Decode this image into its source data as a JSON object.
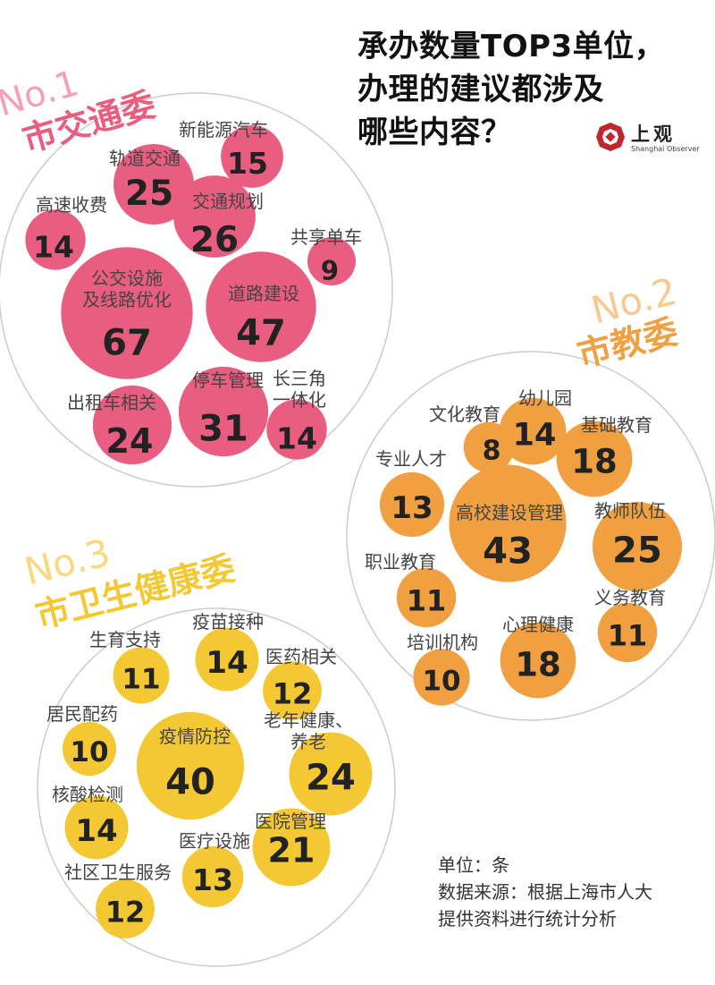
{
  "title": "承办数量TOP3单位，\n办理的建议都涉及\n哪些内容？",
  "logo": {
    "name": "上观",
    "subtitle": "Shanghai Observer",
    "color": "#c0272d"
  },
  "notes": {
    "unit": "单位：条",
    "source_line1": "数据来源：根据上海市人大",
    "source_line2": "提供资料进行统计分析"
  },
  "colors": {
    "pink": "#e95d80",
    "orange": "#f0a040",
    "yellow": "#f4c832",
    "outline": "#cccccc",
    "value_text": "#222222",
    "label_text": "#444444"
  },
  "chart_data": [
    {
      "type": "bubble",
      "rank": "No.1",
      "name": "市交通委",
      "color": "#e95d80",
      "categories": [
        "公交设施\n及线路优化",
        "道路建设",
        "停车管理",
        "交通规划",
        "轨道交通",
        "新能源汽车",
        "出租车相关",
        "长三角\n一体化",
        "高速收费",
        "共享单车"
      ],
      "values": [
        67,
        47,
        31,
        26,
        25,
        15,
        24,
        14,
        14,
        9
      ]
    },
    {
      "type": "bubble",
      "rank": "No.2",
      "name": "市教委",
      "color": "#f0a040",
      "categories": [
        "高校建设管理",
        "教师队伍",
        "基础教育",
        "心理健康",
        "幼儿园",
        "专业人才",
        "职业教育",
        "义务教育",
        "培训机构",
        "文化教育"
      ],
      "values": [
        43,
        25,
        18,
        18,
        14,
        13,
        11,
        11,
        10,
        8
      ]
    },
    {
      "type": "bubble",
      "rank": "No.3",
      "name": "市卫生健康委",
      "color": "#f4c832",
      "categories": [
        "疫情防控",
        "老年健康、\n养老",
        "医院管理",
        "疫苗接种",
        "核酸检测",
        "医疗设施",
        "医药相关",
        "社区卫生服务",
        "生育支持",
        "居民配药"
      ],
      "values": [
        40,
        24,
        21,
        14,
        14,
        13,
        12,
        12,
        11,
        10
      ]
    }
  ]
}
